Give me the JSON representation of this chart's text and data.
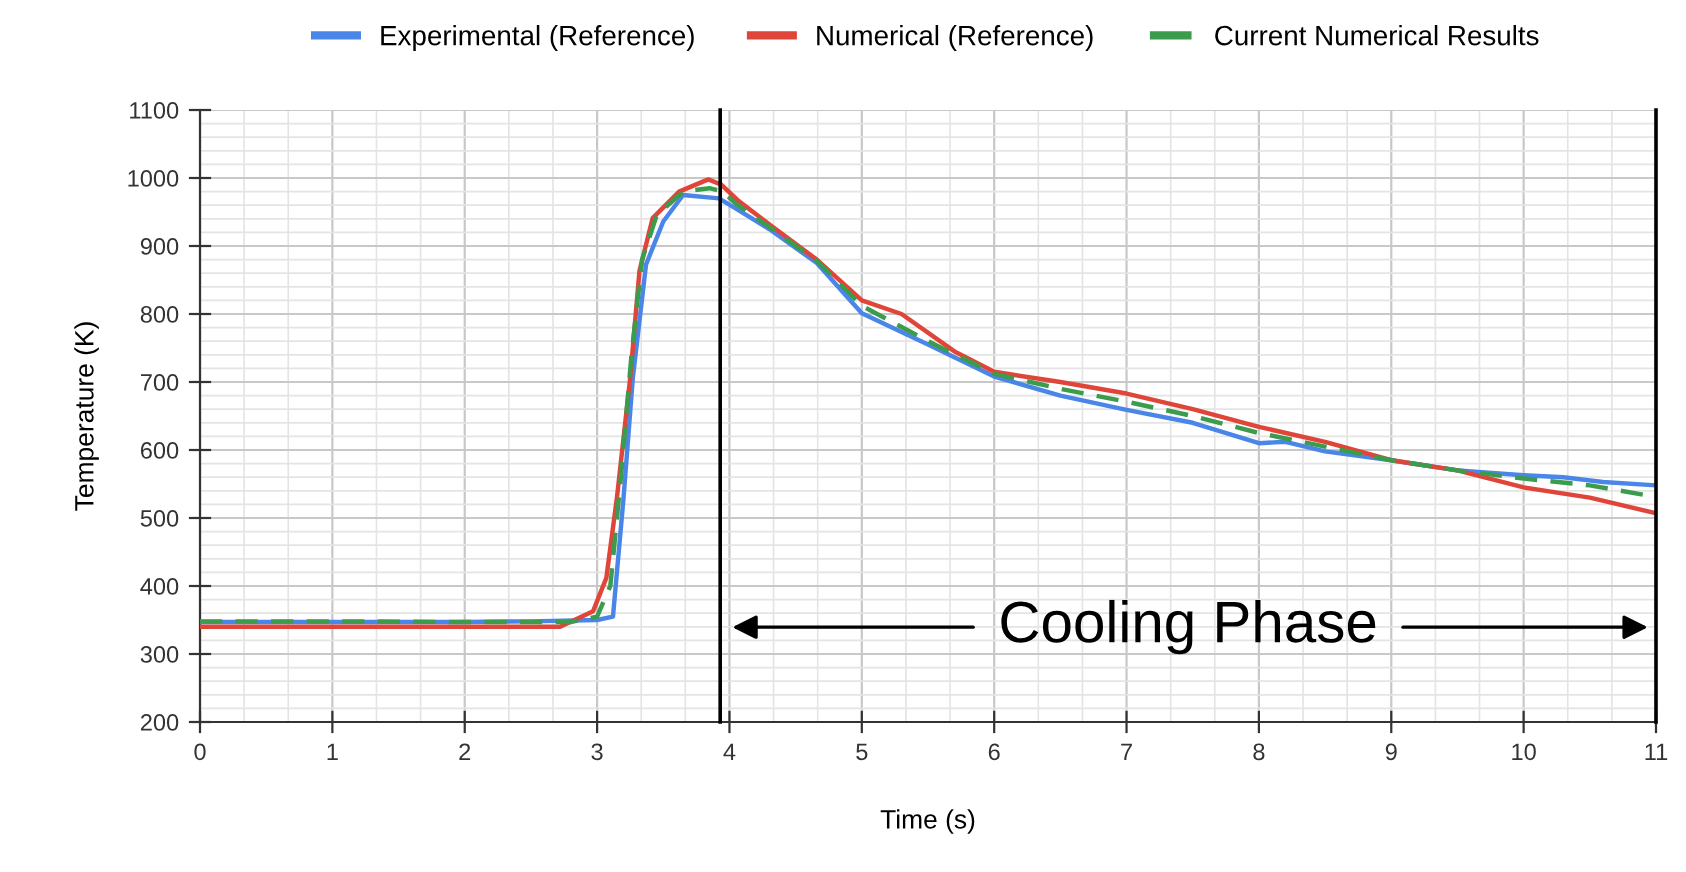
{
  "chart_data": {
    "type": "line",
    "xlabel": "Time (s)",
    "ylabel": "Temperature (K)",
    "xlim": [
      0,
      11
    ],
    "ylim": [
      200,
      1100
    ],
    "xticks": [
      0,
      1,
      2,
      3,
      4,
      5,
      6,
      7,
      8,
      9,
      10,
      11
    ],
    "yticks": [
      200,
      300,
      400,
      500,
      600,
      700,
      800,
      900,
      1000,
      1100
    ],
    "grid": true,
    "legend": "top",
    "marker": "none",
    "series": [
      {
        "name": "Experimental (Reference)",
        "color": "#4a86e8",
        "line_style": "solid",
        "x": [
          0,
          1,
          2,
          2.5,
          3,
          3.12,
          3.2,
          3.27,
          3.37,
          3.5,
          3.65,
          3.92,
          4.04,
          4.3,
          4.66,
          5,
          5.5,
          6,
          6.5,
          7,
          7.5,
          8,
          8.2,
          8.5,
          9,
          9.5,
          10,
          10.3,
          10.6,
          11
        ],
        "values": [
          347,
          347,
          347,
          348,
          350,
          355,
          530,
          706,
          873,
          936,
          975,
          970,
          956,
          925,
          875,
          801,
          755,
          708,
          680,
          659,
          640,
          610,
          612,
          598,
          585,
          570,
          563,
          560,
          553,
          548
        ]
      },
      {
        "name": "Numerical (Reference)",
        "color": "#e0453a",
        "line_style": "solid",
        "x": [
          0,
          1,
          2,
          2.72,
          2.97,
          3.07,
          3.15,
          3.25,
          3.32,
          3.42,
          3.62,
          3.84,
          3.94,
          4.07,
          4.3,
          4.66,
          5,
          5.3,
          5.7,
          6,
          6.5,
          7,
          7.5,
          8,
          8.5,
          9,
          9.5,
          10,
          10.5,
          11
        ],
        "values": [
          340,
          340,
          340,
          340,
          363,
          412,
          530,
          706,
          863,
          941,
          980,
          998,
          990,
          966,
          932,
          880,
          820,
          800,
          745,
          715,
          700,
          683,
          660,
          634,
          612,
          585,
          570,
          545,
          530,
          507
        ]
      },
      {
        "name": "Current Numerical Results",
        "color": "#3a9c4c",
        "line_style": "dashed",
        "x": [
          0,
          1,
          2,
          2.8,
          3.0,
          3.1,
          3.18,
          3.26,
          3.34,
          3.45,
          3.65,
          3.85,
          3.95,
          4.05,
          4.3,
          4.66,
          5,
          5.5,
          6,
          6.5,
          7,
          7.5,
          8,
          8.5,
          9,
          9.5,
          10,
          10.5,
          11
        ],
        "values": [
          348,
          348,
          347,
          347,
          355,
          400,
          560,
          740,
          880,
          945,
          980,
          985,
          980,
          962,
          928,
          878,
          812,
          760,
          712,
          690,
          671,
          650,
          625,
          605,
          585,
          570,
          558,
          548,
          531
        ]
      }
    ],
    "ref_lines": [
      {
        "axis": "x",
        "value": 3.93,
        "color": "#000000"
      },
      {
        "axis": "x",
        "value": 11,
        "color": "#000000"
      }
    ],
    "annotations": [
      "Cooling Phase"
    ]
  }
}
